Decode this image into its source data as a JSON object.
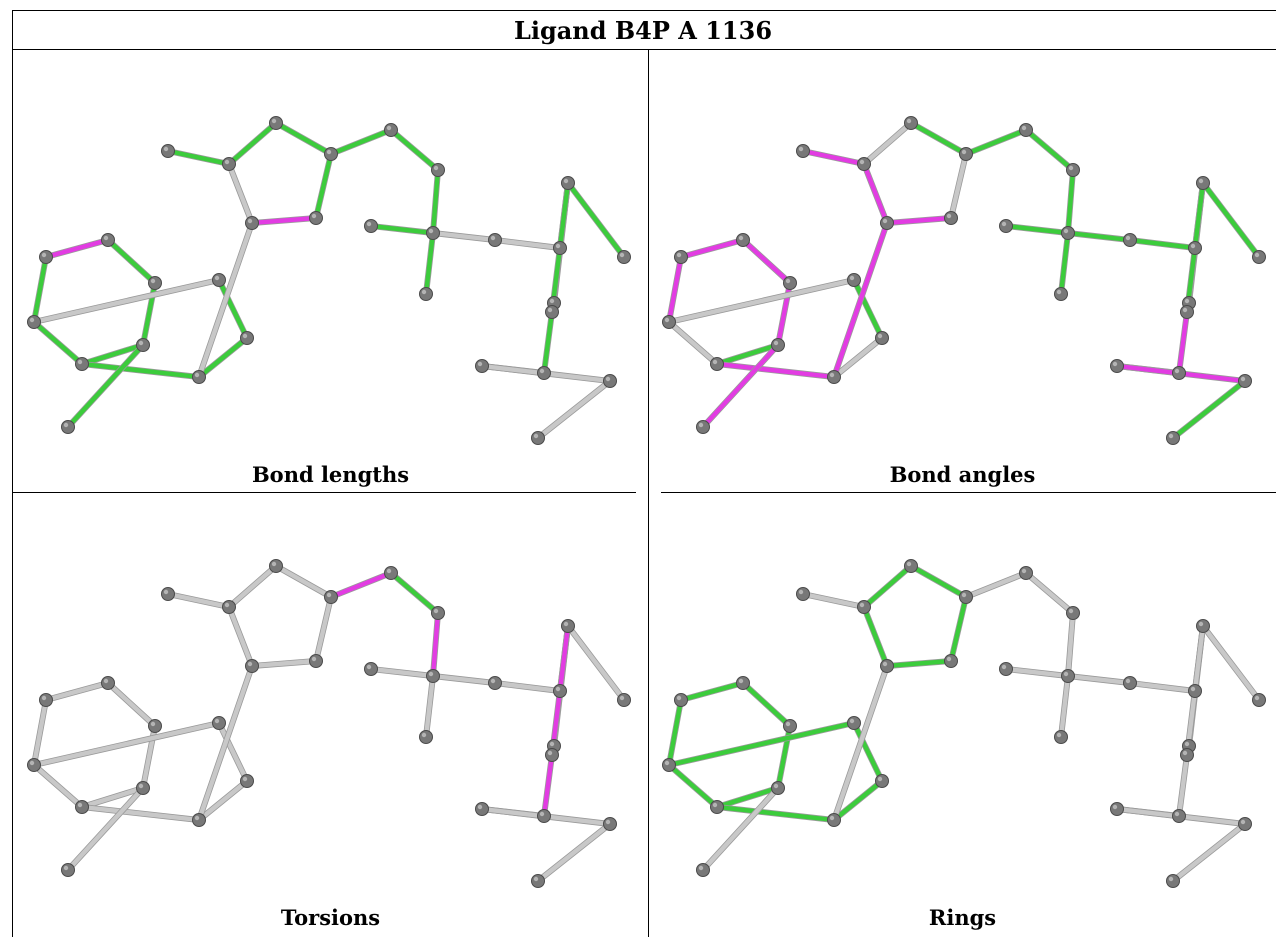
{
  "title": "Ligand B4P A 1136",
  "panels": [
    {
      "id": "bond-lengths",
      "caption": "Bond lengths"
    },
    {
      "id": "bond-angles",
      "caption": "Bond angles"
    },
    {
      "id": "torsions",
      "caption": "Torsions"
    },
    {
      "id": "rings",
      "caption": "Rings"
    }
  ],
  "colors": {
    "normal": "#c8c8c8",
    "ok": "#3ccc3c",
    "outlier": "#e23ce2",
    "atom": "#787878",
    "grid": "#000000"
  },
  "molecule": {
    "atoms": [
      "A1",
      "A2",
      "A3",
      "A4",
      "A5",
      "A6",
      "B1",
      "B2",
      "B3",
      "M1",
      "C1",
      "C2",
      "C3",
      "C4",
      "C5",
      "C6",
      "L1",
      "L2",
      "Q1",
      "Q2",
      "Q3",
      "Q4",
      "L3",
      "R1",
      "R2",
      "R3",
      "R4",
      "S1",
      "S2",
      "S3",
      "S4",
      "S5"
    ],
    "bonds": [
      [
        "A1",
        "A2"
      ],
      [
        "A2",
        "A3"
      ],
      [
        "A3",
        "A4"
      ],
      [
        "A4",
        "A5"
      ],
      [
        "A5",
        "A6"
      ],
      [
        "A6",
        "A1"
      ],
      [
        "A5",
        "B1"
      ],
      [
        "B1",
        "B2"
      ],
      [
        "B2",
        "B3"
      ],
      [
        "B3",
        "A6"
      ],
      [
        "A4",
        "M1"
      ],
      [
        "B1",
        "C1"
      ],
      [
        "C1",
        "C2"
      ],
      [
        "C2",
        "C3"
      ],
      [
        "C3",
        "C4"
      ],
      [
        "C4",
        "C5"
      ],
      [
        "C5",
        "C1"
      ],
      [
        "C2",
        "C6"
      ],
      [
        "C4",
        "L1"
      ],
      [
        "L1",
        "L2"
      ],
      [
        "L2",
        "Q1"
      ],
      [
        "Q1",
        "Q2"
      ],
      [
        "Q1",
        "Q3"
      ],
      [
        "Q1",
        "Q4"
      ],
      [
        "Q4",
        "L3"
      ],
      [
        "L3",
        "R1"
      ],
      [
        "R1",
        "R2"
      ],
      [
        "R1",
        "R3"
      ],
      [
        "R1",
        "R4"
      ],
      [
        "R4",
        "S1"
      ],
      [
        "S1",
        "S2"
      ],
      [
        "S2",
        "S3"
      ],
      [
        "S3",
        "S4"
      ],
      [
        "S3",
        "S5"
      ]
    ]
  },
  "highlights": {
    "bond-lengths": {
      "ok": [
        [
          "A2",
          "A3"
        ],
        [
          "A3",
          "A4"
        ],
        [
          "A4",
          "A5"
        ],
        [
          "A5",
          "A6"
        ],
        [
          "A6",
          "A1"
        ],
        [
          "A5",
          "B1"
        ],
        [
          "B1",
          "B2"
        ],
        [
          "B2",
          "B3"
        ],
        [
          "A4",
          "M1"
        ],
        [
          "C2",
          "C3"
        ],
        [
          "C3",
          "C4"
        ],
        [
          "C4",
          "C5"
        ],
        [
          "C2",
          "C6"
        ],
        [
          "C4",
          "L1"
        ],
        [
          "L1",
          "L2"
        ],
        [
          "L2",
          "Q1"
        ],
        [
          "Q1",
          "Q2"
        ],
        [
          "Q1",
          "Q3"
        ],
        [
          "R1",
          "R2"
        ],
        [
          "R1",
          "R3"
        ],
        [
          "R1",
          "R4"
        ],
        [
          "R4",
          "S1"
        ]
      ],
      "outlier": [
        [
          "A1",
          "A2"
        ],
        [
          "C5",
          "C1"
        ],
        [
          "R1",
          "R3"
        ]
      ]
    },
    "bond-angles": {
      "ok": [
        [
          "A4",
          "A5"
        ],
        [
          "A5",
          "B1"
        ],
        [
          "B2",
          "B3"
        ],
        [
          "C3",
          "C4"
        ],
        [
          "C4",
          "L1"
        ],
        [
          "L1",
          "L2"
        ],
        [
          "L2",
          "Q1"
        ],
        [
          "Q1",
          "Q2"
        ],
        [
          "Q1",
          "Q3"
        ],
        [
          "Q1",
          "Q4"
        ],
        [
          "Q4",
          "L3"
        ],
        [
          "L3",
          "R1"
        ],
        [
          "R1",
          "R2"
        ],
        [
          "R1",
          "R4"
        ],
        [
          "S3",
          "S4"
        ]
      ],
      "outlier": [
        [
          "A1",
          "A2"
        ],
        [
          "A2",
          "A3"
        ],
        [
          "A3",
          "A4"
        ],
        [
          "A6",
          "A1"
        ],
        [
          "A4",
          "M1"
        ],
        [
          "A5",
          "B1"
        ],
        [
          "B1",
          "C1"
        ],
        [
          "C1",
          "C2"
        ],
        [
          "C5",
          "C1"
        ],
        [
          "C6",
          "C2"
        ],
        [
          "R4",
          "S1"
        ],
        [
          "S1",
          "S3"
        ],
        [
          "S3",
          "S2"
        ]
      ]
    },
    "torsions": {
      "ok": [
        [
          "L1",
          "L2"
        ],
        [
          "Q1",
          "L3"
        ]
      ],
      "outlier": [
        [
          "C4",
          "L1"
        ],
        [
          "L2",
          "Q1"
        ],
        [
          "L3",
          "R1"
        ],
        [
          "R1",
          "R4"
        ],
        [
          "R4",
          "S1"
        ],
        [
          "S1",
          "S3"
        ]
      ]
    },
    "rings": {
      "ok": [
        [
          "A1",
          "A2"
        ],
        [
          "A2",
          "A3"
        ],
        [
          "A3",
          "A4"
        ],
        [
          "A4",
          "A5"
        ],
        [
          "A5",
          "A6"
        ],
        [
          "A6",
          "A1"
        ],
        [
          "A5",
          "B1"
        ],
        [
          "B1",
          "B2"
        ],
        [
          "B2",
          "B3"
        ],
        [
          "B3",
          "A6"
        ],
        [
          "C1",
          "C2"
        ],
        [
          "C2",
          "C3"
        ],
        [
          "C3",
          "C4"
        ],
        [
          "C4",
          "C5"
        ],
        [
          "C5",
          "C1"
        ]
      ],
      "outlier": []
    }
  }
}
